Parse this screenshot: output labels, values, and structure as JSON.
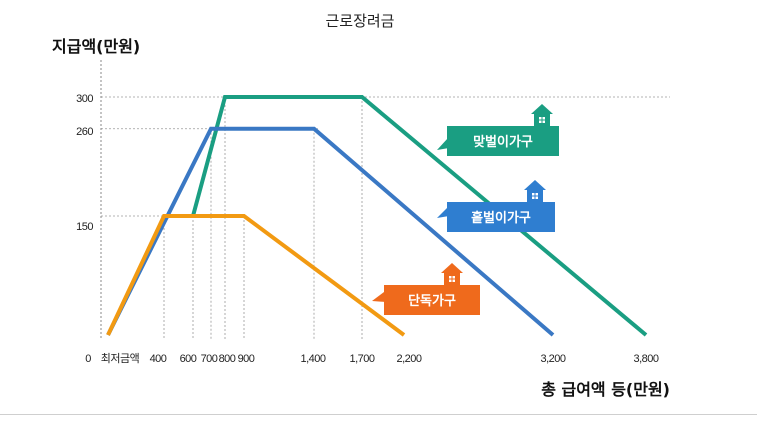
{
  "chart_data": {
    "type": "line",
    "title": "근로장려금",
    "ylabel": "지급액(만원)",
    "xlabel": "총 급여액 등(만원)",
    "x_ticks": [
      "0",
      "최저금액",
      "400",
      "600",
      "700",
      "800",
      "900",
      "1,400",
      "1,700",
      "2,200",
      "3,200",
      "3,800"
    ],
    "y_ticks": [
      "300",
      "260",
      "150"
    ],
    "xlim": [
      0,
      3900
    ],
    "ylim": [
      0,
      330
    ],
    "series": [
      {
        "name": "맞벌이가구",
        "color": "#1a9e82",
        "x": [
          600,
          800,
          1700,
          3800
        ],
        "y": [
          150,
          300,
          300,
          0
        ]
      },
      {
        "name": "홑벌이가구",
        "color": "#3a78c4",
        "x": [
          0,
          700,
          1400,
          3200
        ],
        "y": [
          0,
          260,
          260,
          0
        ]
      },
      {
        "name": "단독가구",
        "color": "#f29a12",
        "x": [
          0,
          400,
          900,
          2200
        ],
        "y": [
          0,
          150,
          150,
          0
        ]
      }
    ],
    "label_colors": {
      "맞벌이가구": "#1a9e82",
      "홑벌이가구": "#2f7ed0",
      "단독가구": "#ef6a1c"
    },
    "grid": "dashed reference lines"
  }
}
